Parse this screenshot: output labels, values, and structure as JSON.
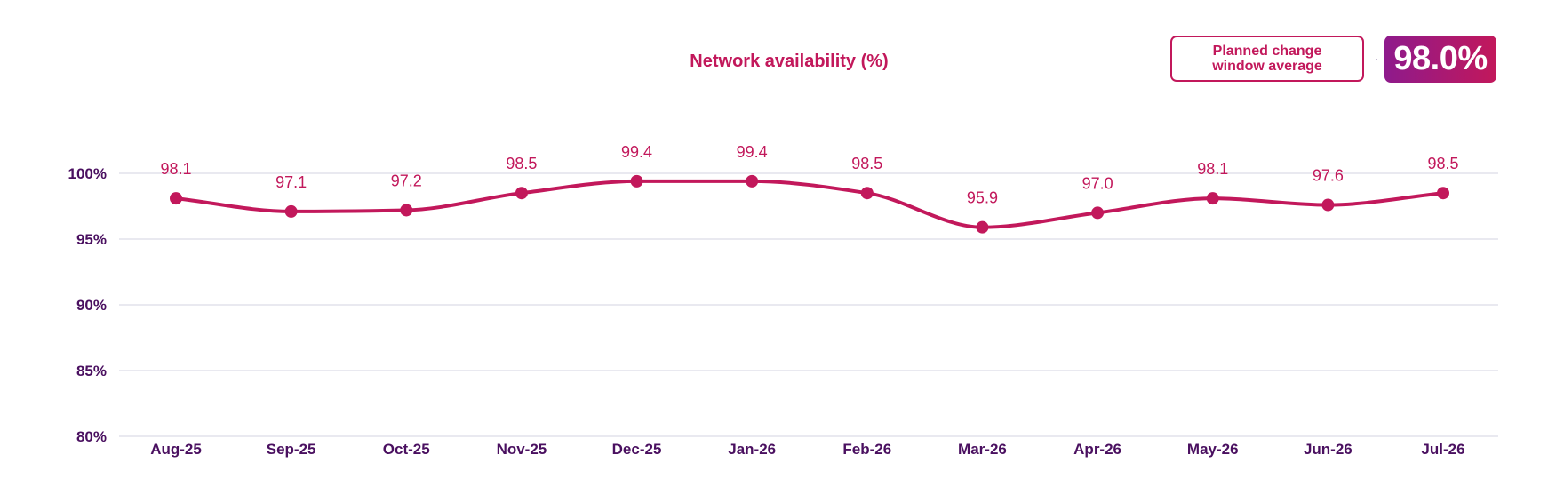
{
  "colors": {
    "accent": "#c2185b",
    "axis_text": "#4a1060",
    "grid": "#dcdce8",
    "kpi_gradient_start": "#8e1a8c",
    "kpi_gradient_end": "#c2185b"
  },
  "kpi": {
    "label": "Planned change window average",
    "value": "98.0%"
  },
  "chart_data": {
    "type": "line",
    "title": "Network availability (%)",
    "xlabel": "",
    "ylabel": "",
    "categories": [
      "Aug-25",
      "Sep-25",
      "Oct-25",
      "Nov-25",
      "Dec-25",
      "Jan-26",
      "Feb-26",
      "Mar-26",
      "Apr-26",
      "May-26",
      "Jun-26",
      "Jul-26"
    ],
    "series": [
      {
        "values": [
          98.1,
          97.1,
          97.2,
          98.5,
          99.4,
          99.4,
          98.5,
          95.9,
          97.0,
          98.1,
          97.6,
          98.5
        ],
        "labels": [
          "98.1",
          "97.1",
          "97.2",
          "98.5",
          "99.4",
          "99.4",
          "98.5",
          "95.9",
          "97.0",
          "98.1",
          "97.6",
          "98.5"
        ]
      }
    ],
    "ylim": [
      80,
      100
    ],
    "yticks": [
      100,
      95,
      90,
      85,
      80
    ],
    "ytick_labels": [
      "100%",
      "95%",
      "90%",
      "85%",
      "80%"
    ],
    "grid": true,
    "legend": "none",
    "smooth": true
  }
}
